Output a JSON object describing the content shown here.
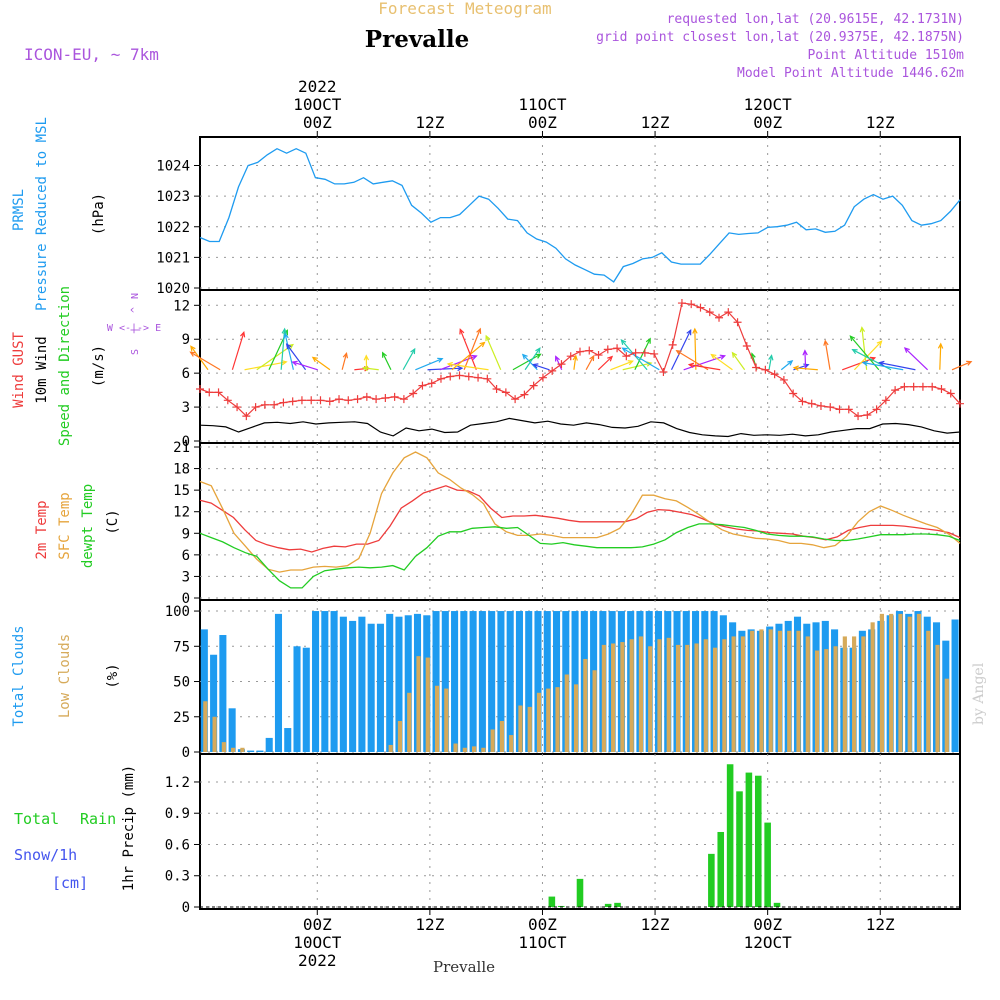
{
  "header": {
    "title": "Forecast Meteogram",
    "location": "Prevalle",
    "model": "ICON-EU, ~ 7km",
    "requested": "requested lon,lat (20.9615E, 42.1731N)",
    "gridpoint": "grid point closest lon,lat (20.9375E, 42.1875N)",
    "altitude": "Point Altitude 1510m",
    "model_altitude": "Model Point Altitude 1446.62m",
    "credit": "by Angel",
    "footer": "Prevalle"
  },
  "colors": {
    "pressure": "#1e9bf0",
    "gust": "#ee3c3c",
    "wind10": "#000000",
    "temp2m": "#ee3c3c",
    "sfc": "#e6a43c",
    "dewpt": "#22cc22",
    "total_clouds": "#1e9bf0",
    "low_clouds": "#d6aa5a",
    "rain": "#22cc22",
    "snow": "#4455ee",
    "title": "#e8c070",
    "meta": "#aa55dd"
  },
  "chart_data": [
    {
      "type": "line",
      "panel": "pressure",
      "label_lines": [
        "PRMSL",
        "Pressure Reduced to MSL"
      ],
      "unit": "(hPa)",
      "ylim": [
        1020,
        1024.8
      ],
      "yticks": [
        "1020",
        "1021",
        "1022",
        "1023",
        "1024"
      ],
      "series": [
        {
          "name": "PRMSL",
          "values": [
            1021.65,
            1021.52,
            1021.52,
            1022.3,
            1023.3,
            1024.0,
            1024.1,
            1024.35,
            1024.55,
            1024.4,
            1024.55,
            1024.4,
            1023.6,
            1023.55,
            1023.4,
            1023.4,
            1023.45,
            1023.6,
            1023.4,
            1023.45,
            1023.5,
            1023.35,
            1022.7,
            1022.45,
            1022.15,
            1022.3,
            1022.3,
            1022.4,
            1022.7,
            1023.0,
            1022.9,
            1022.6,
            1022.25,
            1022.2,
            1021.8,
            1021.6,
            1021.5,
            1021.3,
            1020.95,
            1020.75,
            1020.6,
            1020.45,
            1020.42,
            1020.2,
            1020.7,
            1020.8,
            1020.95,
            1021.0,
            1021.15,
            1020.85,
            1020.78,
            1020.78,
            1020.78,
            1021.1,
            1021.45,
            1021.8,
            1021.75,
            1021.78,
            1021.8,
            1021.98,
            1022.0,
            1022.05,
            1022.15,
            1021.9,
            1021.93,
            1021.82,
            1021.85,
            1022.05,
            1022.65,
            1022.9,
            1023.05,
            1022.9,
            1023.0,
            1022.7,
            1022.2,
            1022.05,
            1022.1,
            1022.2,
            1022.5,
            1022.88
          ]
        }
      ]
    },
    {
      "type": "line",
      "panel": "wind",
      "label_lines": [
        "Wind GUST",
        "10m Wind",
        "Speed and Direction"
      ],
      "unit": "(m/s)",
      "compass": [
        "N",
        "^",
        "|",
        "S",
        "W <-|-> E"
      ],
      "ylim": [
        0,
        13
      ],
      "yticks": [
        "0",
        "3",
        "6",
        "9",
        "12"
      ],
      "series": [
        {
          "name": "Wind GUST",
          "values": [
            4.6,
            4.3,
            4.3,
            3.6,
            3.0,
            2.2,
            3.0,
            3.2,
            3.2,
            3.4,
            3.5,
            3.6,
            3.6,
            3.6,
            3.5,
            3.7,
            3.6,
            3.7,
            3.9,
            3.7,
            3.8,
            3.9,
            3.7,
            4.2,
            4.9,
            5.1,
            5.5,
            5.7,
            5.8,
            5.7,
            5.6,
            5.5,
            4.6,
            4.3,
            3.7,
            4.1,
            4.9,
            5.6,
            6.2,
            6.8,
            7.5,
            7.9,
            8.0,
            7.6,
            8.1,
            8.2,
            7.5,
            7.8,
            7.8,
            7.7,
            6.1,
            8.5,
            12.2,
            12.1,
            11.8,
            11.4,
            10.9,
            11.4,
            10.5,
            8.4,
            6.5,
            6.3,
            5.9,
            5.4,
            4.2,
            3.5,
            3.3,
            3.1,
            3.0,
            2.8,
            2.8,
            2.2,
            2.3,
            2.8,
            3.6,
            4.5,
            4.8,
            4.8,
            4.8,
            4.8,
            4.6,
            4.2,
            3.3
          ]
        },
        {
          "name": "10m Wind",
          "values": [
            1.4,
            1.35,
            1.25,
            0.8,
            1.2,
            1.6,
            1.65,
            1.55,
            1.7,
            1.5,
            1.6,
            1.65,
            1.7,
            1.55,
            0.8,
            0.45,
            1.15,
            0.9,
            1.05,
            0.75,
            0.8,
            1.4,
            1.55,
            1.7,
            2.0,
            1.8,
            1.6,
            1.75,
            1.5,
            1.4,
            1.6,
            1.45,
            1.2,
            1.15,
            1.3,
            1.7,
            1.6,
            1.1,
            0.75,
            0.55,
            0.45,
            0.4,
            0.65,
            0.5,
            0.55,
            0.5,
            0.6,
            0.45,
            0.55,
            0.8,
            0.95,
            1.1,
            1.1,
            1.5,
            1.55,
            1.45,
            1.25,
            0.9,
            0.7,
            0.8
          ]
        }
      ],
      "wind_arrows": {
        "baseline": 6.3,
        "colors": [
          "#ffaa00",
          "#ff7722",
          "#ff3333",
          "#ffdd22",
          "#ccee22",
          "#22cc22",
          "#22ccaa",
          "#22aaee",
          "#3344ee",
          "#aa22ff"
        ]
      }
    },
    {
      "type": "line",
      "panel": "temperature",
      "label_lines": [
        "2m Temp",
        "SFC Temp",
        "dewpt Temp"
      ],
      "unit": "(C)",
      "ylim": [
        0,
        21
      ],
      "yticks": [
        "0",
        "3",
        "6",
        "9",
        "12",
        "15",
        "18",
        "21"
      ],
      "series": [
        {
          "name": "2m Temp",
          "values": [
            13.6,
            13.2,
            12.2,
            11.2,
            9.5,
            8.0,
            7.4,
            7.0,
            6.7,
            6.8,
            6.4,
            6.9,
            7.2,
            7.1,
            7.5,
            7.5,
            8.0,
            10.0,
            12.5,
            13.5,
            14.6,
            15.1,
            15.6,
            15.0,
            14.9,
            14.2,
            12.5,
            11.2,
            11.4,
            11.4,
            11.5,
            11.3,
            11.1,
            10.8,
            10.6,
            10.6,
            10.6,
            10.6,
            10.6,
            11.0,
            11.9,
            12.3,
            12.2,
            11.9,
            11.6,
            11.0,
            10.3,
            9.9,
            9.6,
            9.4,
            9.3,
            9.1,
            9.0,
            8.9,
            8.6,
            8.4,
            8.1,
            8.5,
            9.4,
            9.8,
            10.1,
            10.1,
            10.1,
            10.0,
            9.8,
            9.6,
            9.4,
            9.1,
            8.4
          ]
        },
        {
          "name": "SFC Temp",
          "values": [
            16.2,
            15.6,
            12.4,
            9.0,
            7.2,
            5.4,
            4.0,
            3.6,
            3.9,
            3.9,
            4.3,
            4.4,
            4.3,
            4.5,
            5.5,
            9.0,
            14.5,
            17.4,
            19.5,
            20.3,
            19.5,
            17.4,
            16.5,
            15.3,
            14.4,
            13.1,
            10.3,
            9.2,
            8.7,
            8.7,
            8.9,
            8.7,
            8.4,
            8.4,
            8.4,
            8.4,
            8.9,
            9.7,
            11.6,
            14.3,
            14.3,
            13.8,
            13.5,
            12.6,
            11.6,
            10.5,
            9.5,
            8.9,
            8.6,
            8.3,
            8.2,
            8.0,
            7.6,
            7.6,
            7.4,
            7.0,
            7.3,
            8.6,
            10.6,
            12.0,
            12.8,
            12.2,
            11.5,
            10.9,
            10.3,
            9.8,
            8.9,
            7.6
          ]
        },
        {
          "name": "dewpt Temp",
          "values": [
            9.0,
            8.4,
            7.8,
            7.0,
            6.3,
            5.8,
            4.0,
            2.4,
            1.4,
            1.4,
            3.0,
            3.8,
            4.0,
            4.2,
            4.3,
            4.2,
            4.3,
            4.5,
            3.9,
            5.8,
            7.0,
            8.6,
            9.2,
            9.2,
            9.7,
            9.8,
            9.9,
            9.7,
            9.8,
            8.7,
            7.6,
            7.5,
            7.7,
            7.4,
            7.2,
            7.0,
            7.0,
            7.0,
            7.0,
            7.1,
            7.5,
            8.1,
            9.1,
            9.8,
            10.3,
            10.3,
            10.2,
            10.0,
            9.8,
            9.4,
            8.9,
            8.7,
            8.6,
            8.6,
            8.5,
            8.2,
            8.0,
            8.0,
            8.2,
            8.5,
            8.8,
            8.8,
            8.8,
            8.9,
            8.9,
            8.8,
            8.6,
            8.0
          ]
        }
      ]
    },
    {
      "type": "bar",
      "panel": "clouds",
      "label_lines": [
        "Total Clouds",
        "Low Clouds"
      ],
      "unit": "(%)",
      "ylim": [
        0,
        105
      ],
      "yticks": [
        "0",
        "25",
        "50",
        "75",
        "100"
      ],
      "series": [
        {
          "name": "Total Clouds",
          "values": [
            87,
            69,
            83,
            31,
            2,
            1,
            1,
            10,
            98,
            17,
            75,
            74,
            100,
            100,
            100,
            96,
            93,
            96,
            91,
            91,
            98,
            96,
            97,
            98,
            97,
            100,
            100,
            100,
            100,
            100,
            100,
            100,
            100,
            100,
            100,
            100,
            100,
            100,
            100,
            100,
            100,
            100,
            100,
            100,
            100,
            100,
            100,
            100,
            100,
            100,
            100,
            100,
            100,
            100,
            100,
            100,
            97,
            92,
            86,
            87,
            86,
            89,
            91,
            93,
            96,
            91,
            92,
            93,
            87,
            74,
            74,
            86,
            87,
            93,
            97,
            100,
            98,
            100,
            96,
            92,
            79,
            94
          ]
        },
        {
          "name": "Low Clouds",
          "values": [
            36,
            25,
            7,
            3,
            3,
            0,
            0,
            0,
            0,
            0,
            0,
            0,
            0,
            0,
            0,
            0,
            0,
            0,
            0,
            0,
            5,
            22,
            42,
            68,
            67,
            47,
            45,
            6,
            3,
            4,
            3,
            16,
            22,
            12,
            33,
            32,
            42,
            45,
            46,
            55,
            48,
            66,
            58,
            76,
            77,
            78,
            80,
            82,
            75,
            80,
            81,
            76,
            76,
            77,
            80,
            74,
            80,
            82,
            82,
            86,
            87,
            87,
            86,
            86,
            86,
            82,
            72,
            73,
            75,
            82,
            82,
            82,
            92,
            98,
            98,
            98,
            96,
            98,
            86,
            76,
            52
          ]
        }
      ]
    },
    {
      "type": "bar",
      "panel": "precipitation",
      "label_lines": [
        "Total",
        "Rain",
        "Snow/1h",
        "[cm]"
      ],
      "axis_label": "1hr Precip (mm)",
      "ylim": [
        0,
        1.43
      ],
      "yticks": [
        "0",
        "0.3",
        "0.6",
        "0.9",
        "1.2"
      ],
      "series": [
        {
          "name": "1hr Precip",
          "points": [
            [
              37,
              0.1
            ],
            [
              38,
              0.01
            ],
            [
              40,
              0.27
            ],
            [
              43,
              0.03
            ],
            [
              44,
              0.04
            ],
            [
              54,
              0.51
            ],
            [
              55,
              0.72
            ],
            [
              56,
              1.37
            ],
            [
              57,
              1.11
            ],
            [
              58,
              1.29
            ],
            [
              59,
              1.26
            ],
            [
              60,
              0.81
            ],
            [
              61,
              0.04
            ],
            [
              86,
              0.01
            ]
          ]
        }
      ]
    }
  ],
  "time_axis": {
    "slots": 81,
    "top_labels": [
      {
        "at": 12,
        "line1": "2022",
        "line2": "10OCT",
        "line3": "00Z"
      },
      {
        "at": 24,
        "line1": "",
        "line2": "",
        "line3": "12Z"
      },
      {
        "at": 36,
        "line1": "",
        "line2": "11OCT",
        "line3": "00Z"
      },
      {
        "at": 48,
        "line1": "",
        "line2": "",
        "line3": "12Z"
      },
      {
        "at": 60,
        "line1": "",
        "line2": "12OCT",
        "line3": "00Z"
      },
      {
        "at": 72,
        "line1": "",
        "line2": "",
        "line3": "12Z"
      }
    ],
    "bottom_labels": [
      {
        "at": 12,
        "line1": "00Z",
        "line2": "10OCT",
        "line3": "2022"
      },
      {
        "at": 24,
        "line1": "12Z",
        "line2": "",
        "line3": ""
      },
      {
        "at": 36,
        "line1": "00Z",
        "line2": "11OCT",
        "line3": ""
      },
      {
        "at": 48,
        "line1": "12Z",
        "line2": "",
        "line3": ""
      },
      {
        "at": 60,
        "line1": "00Z",
        "line2": "12OCT",
        "line3": ""
      },
      {
        "at": 72,
        "line1": "12Z",
        "line2": "",
        "line3": ""
      }
    ]
  }
}
